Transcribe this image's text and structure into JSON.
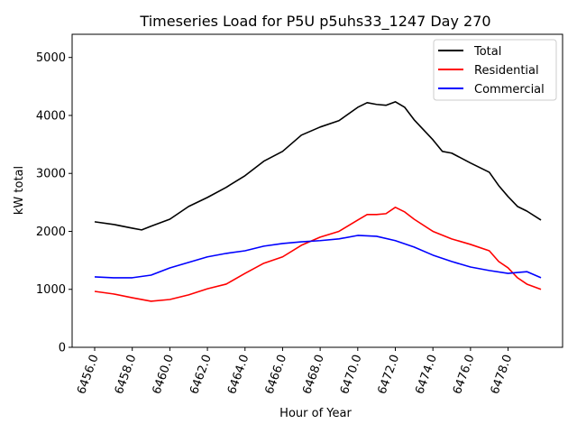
{
  "chart_data": {
    "type": "line",
    "title": "Timeseries Load for P5U p5uhs33_1247  Day 270",
    "xlabel": "Hour of Year",
    "ylabel": "kW total",
    "xlim": [
      6454.8,
      6480.9
    ],
    "ylim": [
      0,
      5400
    ],
    "xticks": [
      6456,
      6458,
      6460,
      6462,
      6464,
      6466,
      6468,
      6470,
      6472,
      6474,
      6476,
      6478
    ],
    "xtick_labels": [
      "6456.0",
      "6458.0",
      "6460.0",
      "6462.0",
      "6464.0",
      "6466.0",
      "6468.0",
      "6470.0",
      "6472.0",
      "6474.0",
      "6476.0",
      "6478.0"
    ],
    "yticks": [
      0,
      1000,
      2000,
      3000,
      4000,
      5000
    ],
    "ytick_labels": [
      "0",
      "1000",
      "2000",
      "3000",
      "4000",
      "5000"
    ],
    "grid": false,
    "legend_position": "top-right",
    "series": [
      {
        "name": "Total",
        "color": "#000000",
        "points": [
          [
            6456,
            2165
          ],
          [
            6457,
            2120
          ],
          [
            6458,
            2055
          ],
          [
            6458.5,
            2025
          ],
          [
            6459,
            2090
          ],
          [
            6460,
            2210
          ],
          [
            6461,
            2430
          ],
          [
            6462,
            2585
          ],
          [
            6463,
            2760
          ],
          [
            6464,
            2960
          ],
          [
            6465,
            3210
          ],
          [
            6466,
            3380
          ],
          [
            6467,
            3660
          ],
          [
            6468,
            3800
          ],
          [
            6469,
            3910
          ],
          [
            6470,
            4140
          ],
          [
            6470.5,
            4220
          ],
          [
            6471,
            4190
          ],
          [
            6471.5,
            4175
          ],
          [
            6472,
            4235
          ],
          [
            6472.5,
            4140
          ],
          [
            6473,
            3925
          ],
          [
            6474,
            3580
          ],
          [
            6474.5,
            3380
          ],
          [
            6475,
            3350
          ],
          [
            6476,
            3180
          ],
          [
            6477,
            3020
          ],
          [
            6477.5,
            2790
          ],
          [
            6478,
            2600
          ],
          [
            6478.5,
            2430
          ],
          [
            6479,
            2350
          ],
          [
            6479.75,
            2195
          ]
        ]
      },
      {
        "name": "Residential",
        "color": "#ff0000",
        "points": [
          [
            6456,
            965
          ],
          [
            6457,
            920
          ],
          [
            6458,
            855
          ],
          [
            6459,
            795
          ],
          [
            6460,
            825
          ],
          [
            6461,
            905
          ],
          [
            6462,
            1010
          ],
          [
            6463,
            1090
          ],
          [
            6464,
            1275
          ],
          [
            6465,
            1450
          ],
          [
            6466,
            1560
          ],
          [
            6467,
            1760
          ],
          [
            6468,
            1900
          ],
          [
            6469,
            2000
          ],
          [
            6470,
            2195
          ],
          [
            6470.5,
            2290
          ],
          [
            6471,
            2290
          ],
          [
            6471.5,
            2305
          ],
          [
            6472,
            2415
          ],
          [
            6472.5,
            2335
          ],
          [
            6473,
            2210
          ],
          [
            6474,
            2000
          ],
          [
            6475,
            1870
          ],
          [
            6476,
            1775
          ],
          [
            6477,
            1665
          ],
          [
            6477.5,
            1480
          ],
          [
            6478,
            1370
          ],
          [
            6478.5,
            1200
          ],
          [
            6479,
            1090
          ],
          [
            6479.75,
            1000
          ]
        ]
      },
      {
        "name": "Commercial",
        "color": "#0000ff",
        "points": [
          [
            6456,
            1215
          ],
          [
            6457,
            1200
          ],
          [
            6458,
            1200
          ],
          [
            6459,
            1245
          ],
          [
            6460,
            1370
          ],
          [
            6461,
            1465
          ],
          [
            6462,
            1560
          ],
          [
            6463,
            1620
          ],
          [
            6464,
            1665
          ],
          [
            6465,
            1745
          ],
          [
            6466,
            1790
          ],
          [
            6467,
            1820
          ],
          [
            6468,
            1840
          ],
          [
            6469,
            1870
          ],
          [
            6470,
            1930
          ],
          [
            6471,
            1915
          ],
          [
            6472,
            1840
          ],
          [
            6473,
            1730
          ],
          [
            6474,
            1590
          ],
          [
            6475,
            1480
          ],
          [
            6476,
            1385
          ],
          [
            6477,
            1325
          ],
          [
            6478,
            1275
          ],
          [
            6478.5,
            1290
          ],
          [
            6479,
            1305
          ],
          [
            6479.75,
            1200
          ]
        ]
      }
    ]
  }
}
